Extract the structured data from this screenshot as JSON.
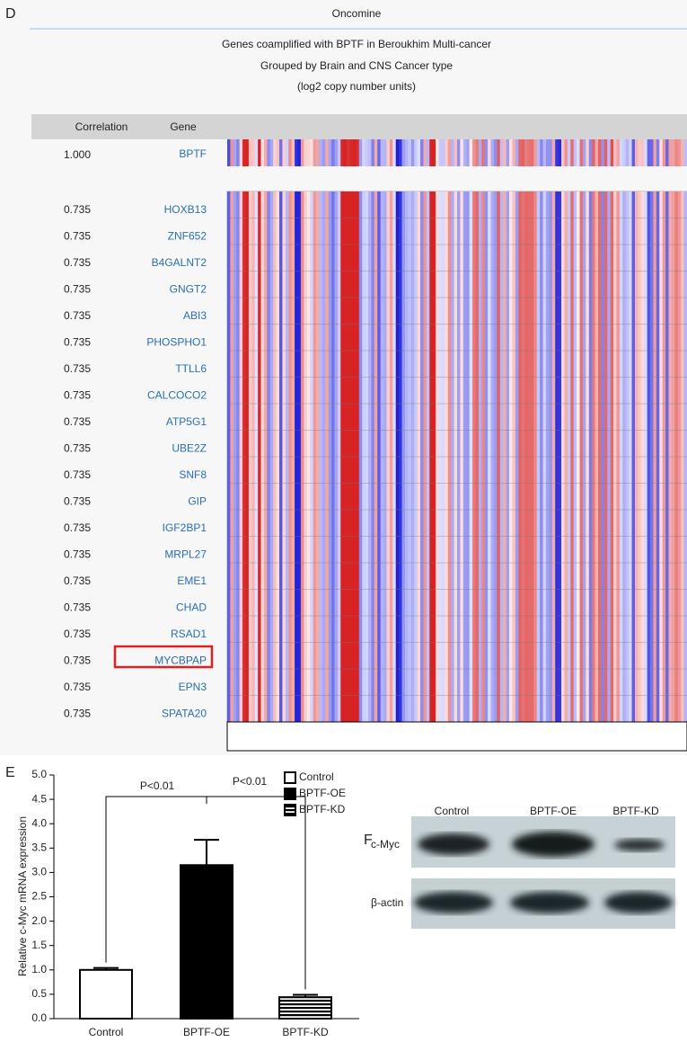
{
  "panel_d": {
    "label": "D",
    "header": "Oncomine",
    "title_lines": [
      "Genes coamplified with BPTF in Beroukhim Multi-cancer",
      "Grouped by Brain and CNS Cancer type",
      "(log2 copy number units)"
    ],
    "columns": [
      "Correlation",
      "Gene"
    ],
    "reference": {
      "correlation": "1.000",
      "gene": "BPTF"
    },
    "rows": [
      {
        "correlation": "0.735",
        "gene": "HOXB13"
      },
      {
        "correlation": "0.735",
        "gene": "ZNF652"
      },
      {
        "correlation": "0.735",
        "gene": "B4GALNT2"
      },
      {
        "correlation": "0.735",
        "gene": "GNGT2"
      },
      {
        "correlation": "0.735",
        "gene": "ABI3"
      },
      {
        "correlation": "0.735",
        "gene": "PHOSPHO1"
      },
      {
        "correlation": "0.735",
        "gene": "TTLL6"
      },
      {
        "correlation": "0.735",
        "gene": "CALCOCO2"
      },
      {
        "correlation": "0.735",
        "gene": "ATP5G1"
      },
      {
        "correlation": "0.735",
        "gene": "UBE2Z"
      },
      {
        "correlation": "0.735",
        "gene": "SNF8"
      },
      {
        "correlation": "0.735",
        "gene": "GIP"
      },
      {
        "correlation": "0.735",
        "gene": "IGF2BP1"
      },
      {
        "correlation": "0.735",
        "gene": "MRPL27"
      },
      {
        "correlation": "0.735",
        "gene": "EME1"
      },
      {
        "correlation": "0.735",
        "gene": "CHAD"
      },
      {
        "correlation": "0.735",
        "gene": "RSAD1"
      },
      {
        "correlation": "0.735",
        "gene": "MYCBPAP"
      },
      {
        "correlation": "0.735",
        "gene": "EPN3"
      },
      {
        "correlation": "0.735",
        "gene": "SPATA20"
      }
    ]
  },
  "chart_data": {
    "type": "bar",
    "panel_label": "E",
    "ylabel": "Relative c-Myc mRNA expression",
    "categories": [
      "Control",
      "BPTF-OE",
      "BPTF-KD"
    ],
    "values": [
      1.0,
      3.15,
      0.44
    ],
    "errors": [
      0.04,
      0.52,
      0.05
    ],
    "colors": [
      "#ffffff",
      "#000000",
      "#000000"
    ],
    "hatch": [
      false,
      false,
      true
    ],
    "ylim": [
      0,
      5
    ],
    "yticks": [
      {
        "value": 0,
        "label": "0.0"
      },
      {
        "value": 0.5,
        "label": "0.5"
      },
      {
        "value": 1,
        "label": "1.0"
      },
      {
        "value": 1.5,
        "label": "1.5"
      },
      {
        "value": 2,
        "label": "2.0"
      },
      {
        "value": 2.5,
        "label": "2.5"
      },
      {
        "value": 3,
        "label": "3.0"
      },
      {
        "value": 3.5,
        "label": "3.5"
      },
      {
        "value": 4,
        "label": "4.0"
      },
      {
        "value": 4.5,
        "label": "4.5"
      },
      {
        "value": 5,
        "label": "5.0"
      }
    ],
    "annotations": [
      "P<0.01",
      "P<0.01"
    ]
  },
  "panel_f": {
    "label": "F",
    "columns": [
      "Control",
      "BPTF-OE",
      "BPTF-KD"
    ],
    "rows": [
      "c-Myc",
      "β-actin"
    ]
  }
}
